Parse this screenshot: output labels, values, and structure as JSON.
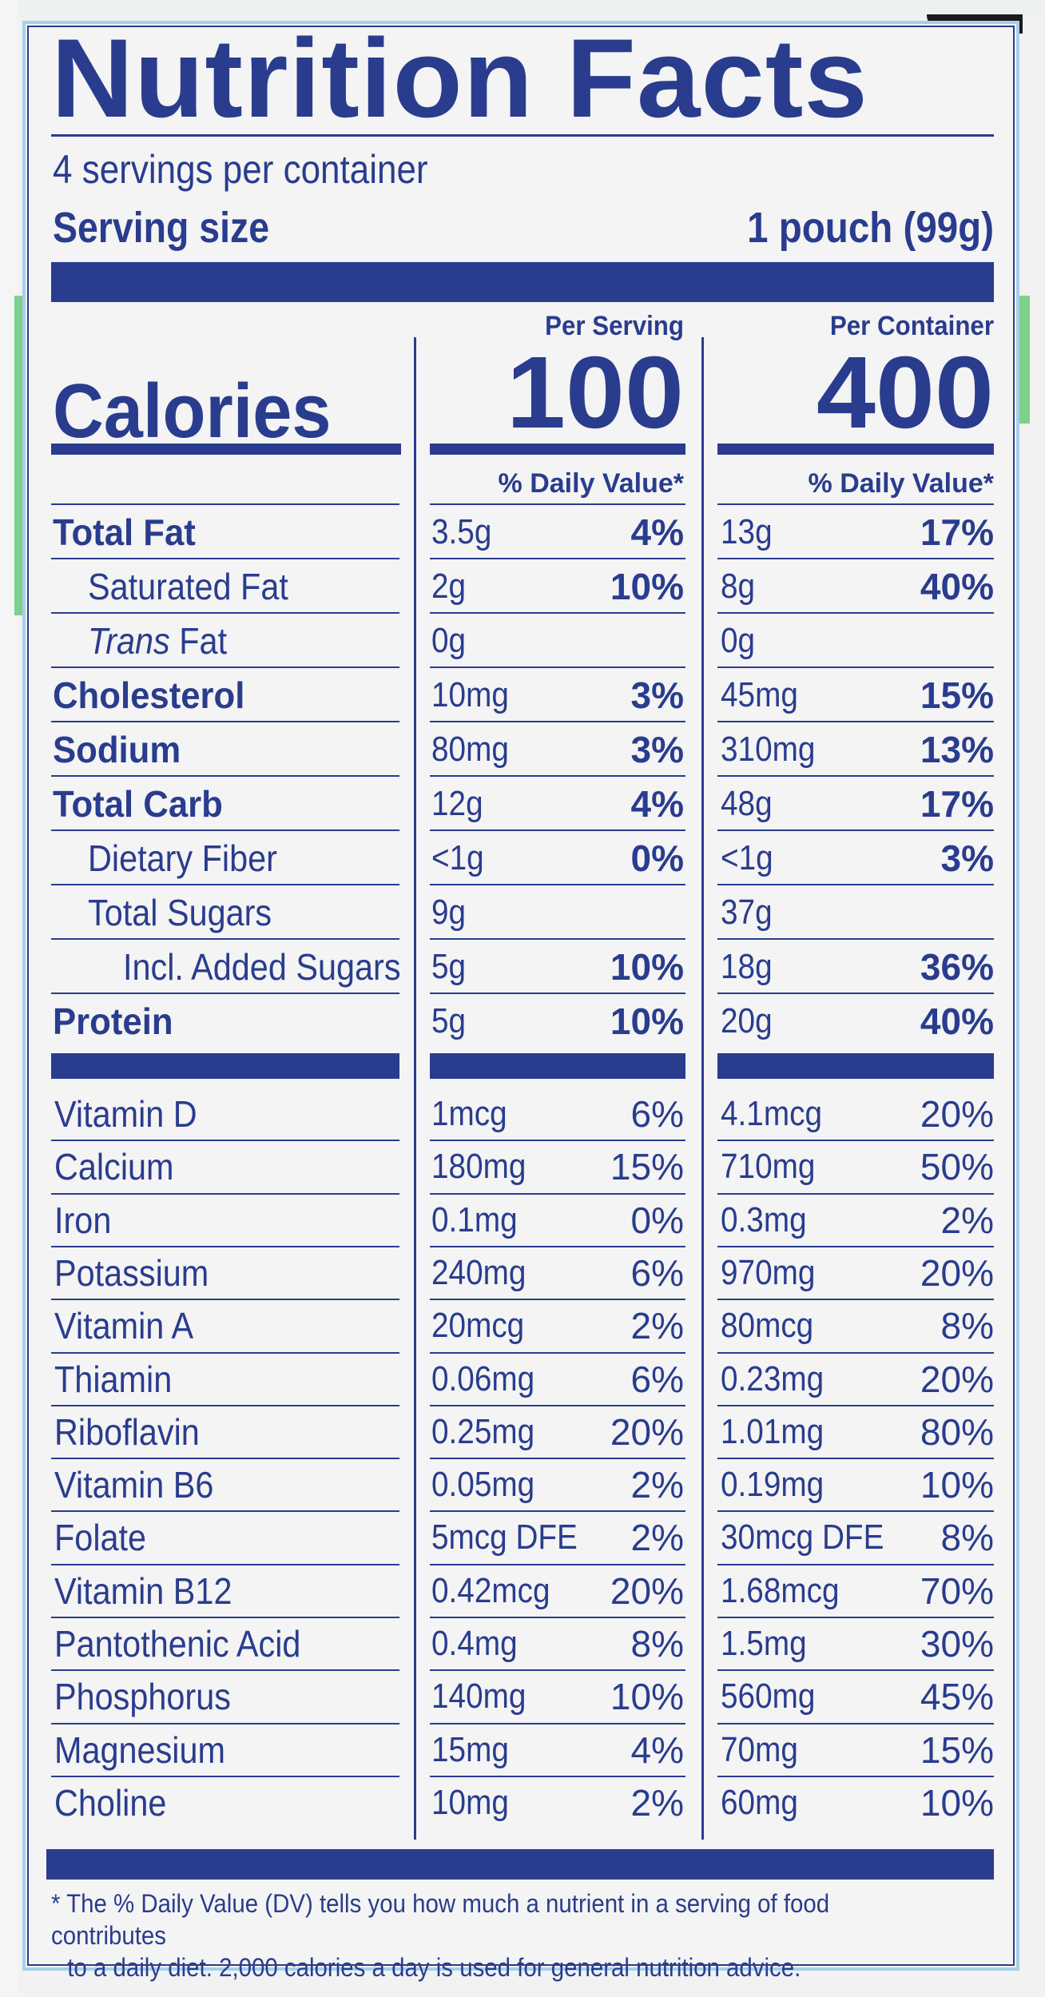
{
  "title": "Nutrition Facts",
  "servings_per_container": "4 servings per container",
  "serving_size_label": "Serving size",
  "serving_size_value": "1 pouch (99g)",
  "col_headers": {
    "per_serving": "Per Serving",
    "per_container": "Per Container"
  },
  "calories_label": "Calories",
  "calories_serving": "100",
  "calories_container": "400",
  "dv_header": "% Daily Value*",
  "macros": [
    {
      "name": "Total Fat",
      "bold": true,
      "indent": 0,
      "s_amt": "3.5g",
      "s_pct": "4%",
      "c_amt": "13g",
      "c_pct": "17%"
    },
    {
      "name": "Saturated Fat",
      "bold": false,
      "indent": 1,
      "s_amt": "2g",
      "s_pct": "10%",
      "c_amt": "8g",
      "c_pct": "40%"
    },
    {
      "name": "Trans Fat",
      "bold": false,
      "indent": 1,
      "italic_prefix": "Trans",
      "s_amt": "0g",
      "s_pct": "",
      "c_amt": "0g",
      "c_pct": ""
    },
    {
      "name": "Cholesterol",
      "bold": true,
      "indent": 0,
      "s_amt": "10mg",
      "s_pct": "3%",
      "c_amt": "45mg",
      "c_pct": "15%"
    },
    {
      "name": "Sodium",
      "bold": true,
      "indent": 0,
      "s_amt": "80mg",
      "s_pct": "3%",
      "c_amt": "310mg",
      "c_pct": "13%"
    },
    {
      "name": "Total Carb",
      "bold": true,
      "indent": 0,
      "s_amt": "12g",
      "s_pct": "4%",
      "c_amt": "48g",
      "c_pct": "17%"
    },
    {
      "name": "Dietary Fiber",
      "bold": false,
      "indent": 1,
      "s_amt": "<1g",
      "s_pct": "0%",
      "c_amt": "<1g",
      "c_pct": "3%"
    },
    {
      "name": "Total Sugars",
      "bold": false,
      "indent": 1,
      "s_amt": "9g",
      "s_pct": "",
      "c_amt": "37g",
      "c_pct": ""
    },
    {
      "name": "Incl. Added Sugars",
      "bold": false,
      "indent": 2,
      "s_amt": "5g",
      "s_pct": "10%",
      "c_amt": "18g",
      "c_pct": "36%"
    },
    {
      "name": "Protein",
      "bold": true,
      "indent": 0,
      "s_amt": "5g",
      "s_pct": "10%",
      "c_amt": "20g",
      "c_pct": "40%"
    }
  ],
  "micros": [
    {
      "name": "Vitamin D",
      "s_amt": "1mcg",
      "s_pct": "6%",
      "c_amt": "4.1mcg",
      "c_pct": "20%"
    },
    {
      "name": "Calcium",
      "s_amt": "180mg",
      "s_pct": "15%",
      "c_amt": "710mg",
      "c_pct": "50%"
    },
    {
      "name": "Iron",
      "s_amt": "0.1mg",
      "s_pct": "0%",
      "c_amt": "0.3mg",
      "c_pct": "2%"
    },
    {
      "name": "Potassium",
      "s_amt": "240mg",
      "s_pct": "6%",
      "c_amt": "970mg",
      "c_pct": "20%"
    },
    {
      "name": "Vitamin A",
      "s_amt": "20mcg",
      "s_pct": "2%",
      "c_amt": "80mcg",
      "c_pct": "8%"
    },
    {
      "name": "Thiamin",
      "s_amt": "0.06mg",
      "s_pct": "6%",
      "c_amt": "0.23mg",
      "c_pct": "20%"
    },
    {
      "name": "Riboflavin",
      "s_amt": "0.25mg",
      "s_pct": "20%",
      "c_amt": "1.01mg",
      "c_pct": "80%"
    },
    {
      "name": "Vitamin B6",
      "s_amt": "0.05mg",
      "s_pct": "2%",
      "c_amt": "0.19mg",
      "c_pct": "10%"
    },
    {
      "name": "Folate",
      "s_amt": "5mcg DFE",
      "s_pct": "2%",
      "c_amt": "30mcg DFE",
      "c_pct": "8%"
    },
    {
      "name": "Vitamin B12",
      "s_amt": "0.42mcg",
      "s_pct": "20%",
      "c_amt": "1.68mcg",
      "c_pct": "70%"
    },
    {
      "name": "Pantothenic Acid",
      "s_amt": "0.4mg",
      "s_pct": "8%",
      "c_amt": "1.5mg",
      "c_pct": "30%"
    },
    {
      "name": "Phosphorus",
      "s_amt": "140mg",
      "s_pct": "10%",
      "c_amt": "560mg",
      "c_pct": "45%"
    },
    {
      "name": "Magnesium",
      "s_amt": "15mg",
      "s_pct": "4%",
      "c_amt": "70mg",
      "c_pct": "15%"
    },
    {
      "name": "Choline",
      "s_amt": "10mg",
      "s_pct": "2%",
      "c_amt": "60mg",
      "c_pct": "10%"
    }
  ],
  "footnote_line1": "* The % Daily Value (DV) tells you how much a nutrient in a serving of food contributes",
  "footnote_line2": "to a daily diet. 2,000 calories a day is used for general nutrition advice.",
  "colors": {
    "ink": "#2a3c8e",
    "background": "#f3f4f3",
    "border": "#a8cfe8"
  }
}
